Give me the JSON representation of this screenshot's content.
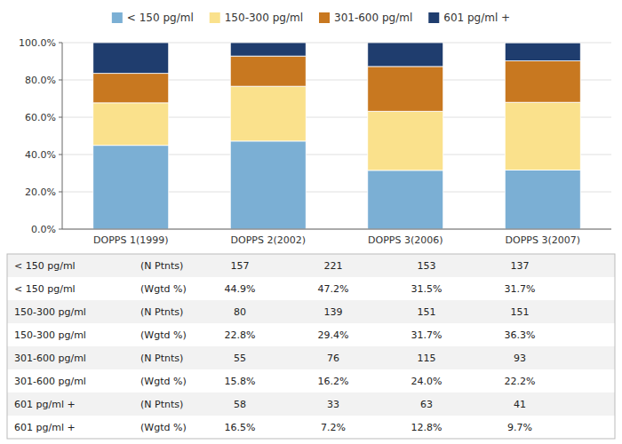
{
  "chart_data": {
    "type": "bar",
    "stacked": true,
    "categories": [
      "DOPPS 1(1999)",
      "DOPPS 2(2002)",
      "DOPPS 3(2006)",
      "DOPPS 3(2007)"
    ],
    "series": [
      {
        "name": "< 150 pg/ml",
        "color": "#7BAFD4",
        "values": [
          44.9,
          47.2,
          31.5,
          31.7
        ]
      },
      {
        "name": "150-300 pg/ml",
        "color": "#FAE18C",
        "values": [
          22.8,
          29.4,
          31.7,
          36.3
        ]
      },
      {
        "name": "301-600 pg/ml",
        "color": "#C87820",
        "values": [
          15.8,
          16.2,
          24.0,
          22.2
        ]
      },
      {
        "name": "601 pg/ml +",
        "color": "#1F3D6E",
        "values": [
          16.5,
          7.2,
          12.8,
          9.7
        ]
      }
    ],
    "ylim": [
      0,
      100
    ],
    "yticks": [
      {
        "value": 0,
        "label": "0.0%"
      },
      {
        "value": 20,
        "label": "20.0%"
      },
      {
        "value": 40,
        "label": "40.0%"
      },
      {
        "value": 60,
        "label": "60.0%"
      },
      {
        "value": 80,
        "label": "80.0%"
      },
      {
        "value": 100,
        "label": "100.0%"
      }
    ],
    "grid": true,
    "legend": "top",
    "table_rows": [
      [
        "< 150 pg/ml",
        "(N Ptnts)",
        "157",
        "221",
        "153",
        "137"
      ],
      [
        "< 150 pg/ml",
        "(Wgtd %)",
        "44.9%",
        "47.2%",
        "31.5%",
        "31.7%"
      ],
      [
        "150-300 pg/ml",
        "(N Ptnts)",
        "80",
        "139",
        "151",
        "151"
      ],
      [
        "150-300 pg/ml",
        "(Wgtd %)",
        "22.8%",
        "29.4%",
        "31.7%",
        "36.3%"
      ],
      [
        "301-600 pg/ml",
        "(N Ptnts)",
        "55",
        "76",
        "115",
        "93"
      ],
      [
        "301-600 pg/ml",
        "(Wgtd %)",
        "15.8%",
        "16.2%",
        "24.0%",
        "22.2%"
      ],
      [
        "601 pg/ml +",
        "(N Ptnts)",
        "58",
        "33",
        "63",
        "41"
      ],
      [
        "601 pg/ml +",
        "(Wgtd %)",
        "16.5%",
        "7.2%",
        "12.8%",
        "9.7%"
      ]
    ]
  }
}
